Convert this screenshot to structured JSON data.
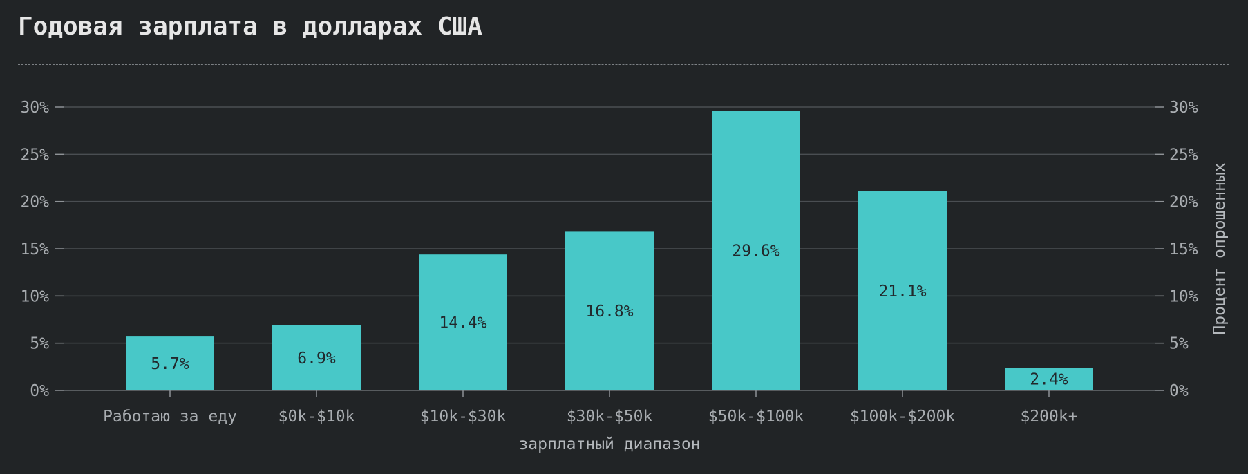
{
  "chart_data": {
    "type": "bar",
    "title": "Годовая зарплата в долларах США",
    "xlabel": "зарплатный диапазон",
    "ylabel": "Процент опрошенных",
    "categories": [
      "Работаю за еду",
      "$0k-$10k",
      "$10k-$30k",
      "$30k-$50k",
      "$50k-$100k",
      "$100k-$200k",
      "$200k+"
    ],
    "values": [
      5.7,
      6.9,
      14.4,
      16.8,
      29.6,
      21.1,
      2.4
    ],
    "data_labels": [
      "5.7%",
      "6.9%",
      "14.4%",
      "16.8%",
      "29.6%",
      "21.1%",
      "2.4%"
    ],
    "ylim": [
      0,
      30
    ],
    "yticks": [
      0,
      5,
      10,
      15,
      20,
      25,
      30
    ],
    "ytick_labels": [
      "0%",
      "5%",
      "10%",
      "15%",
      "20%",
      "25%",
      "30%"
    ],
    "grid": true,
    "secondary_y_axis": true,
    "colors": {
      "bar": "#48c8c8",
      "background": "#212426",
      "grid": "#4a4e52",
      "text": "#a9adb1"
    }
  }
}
